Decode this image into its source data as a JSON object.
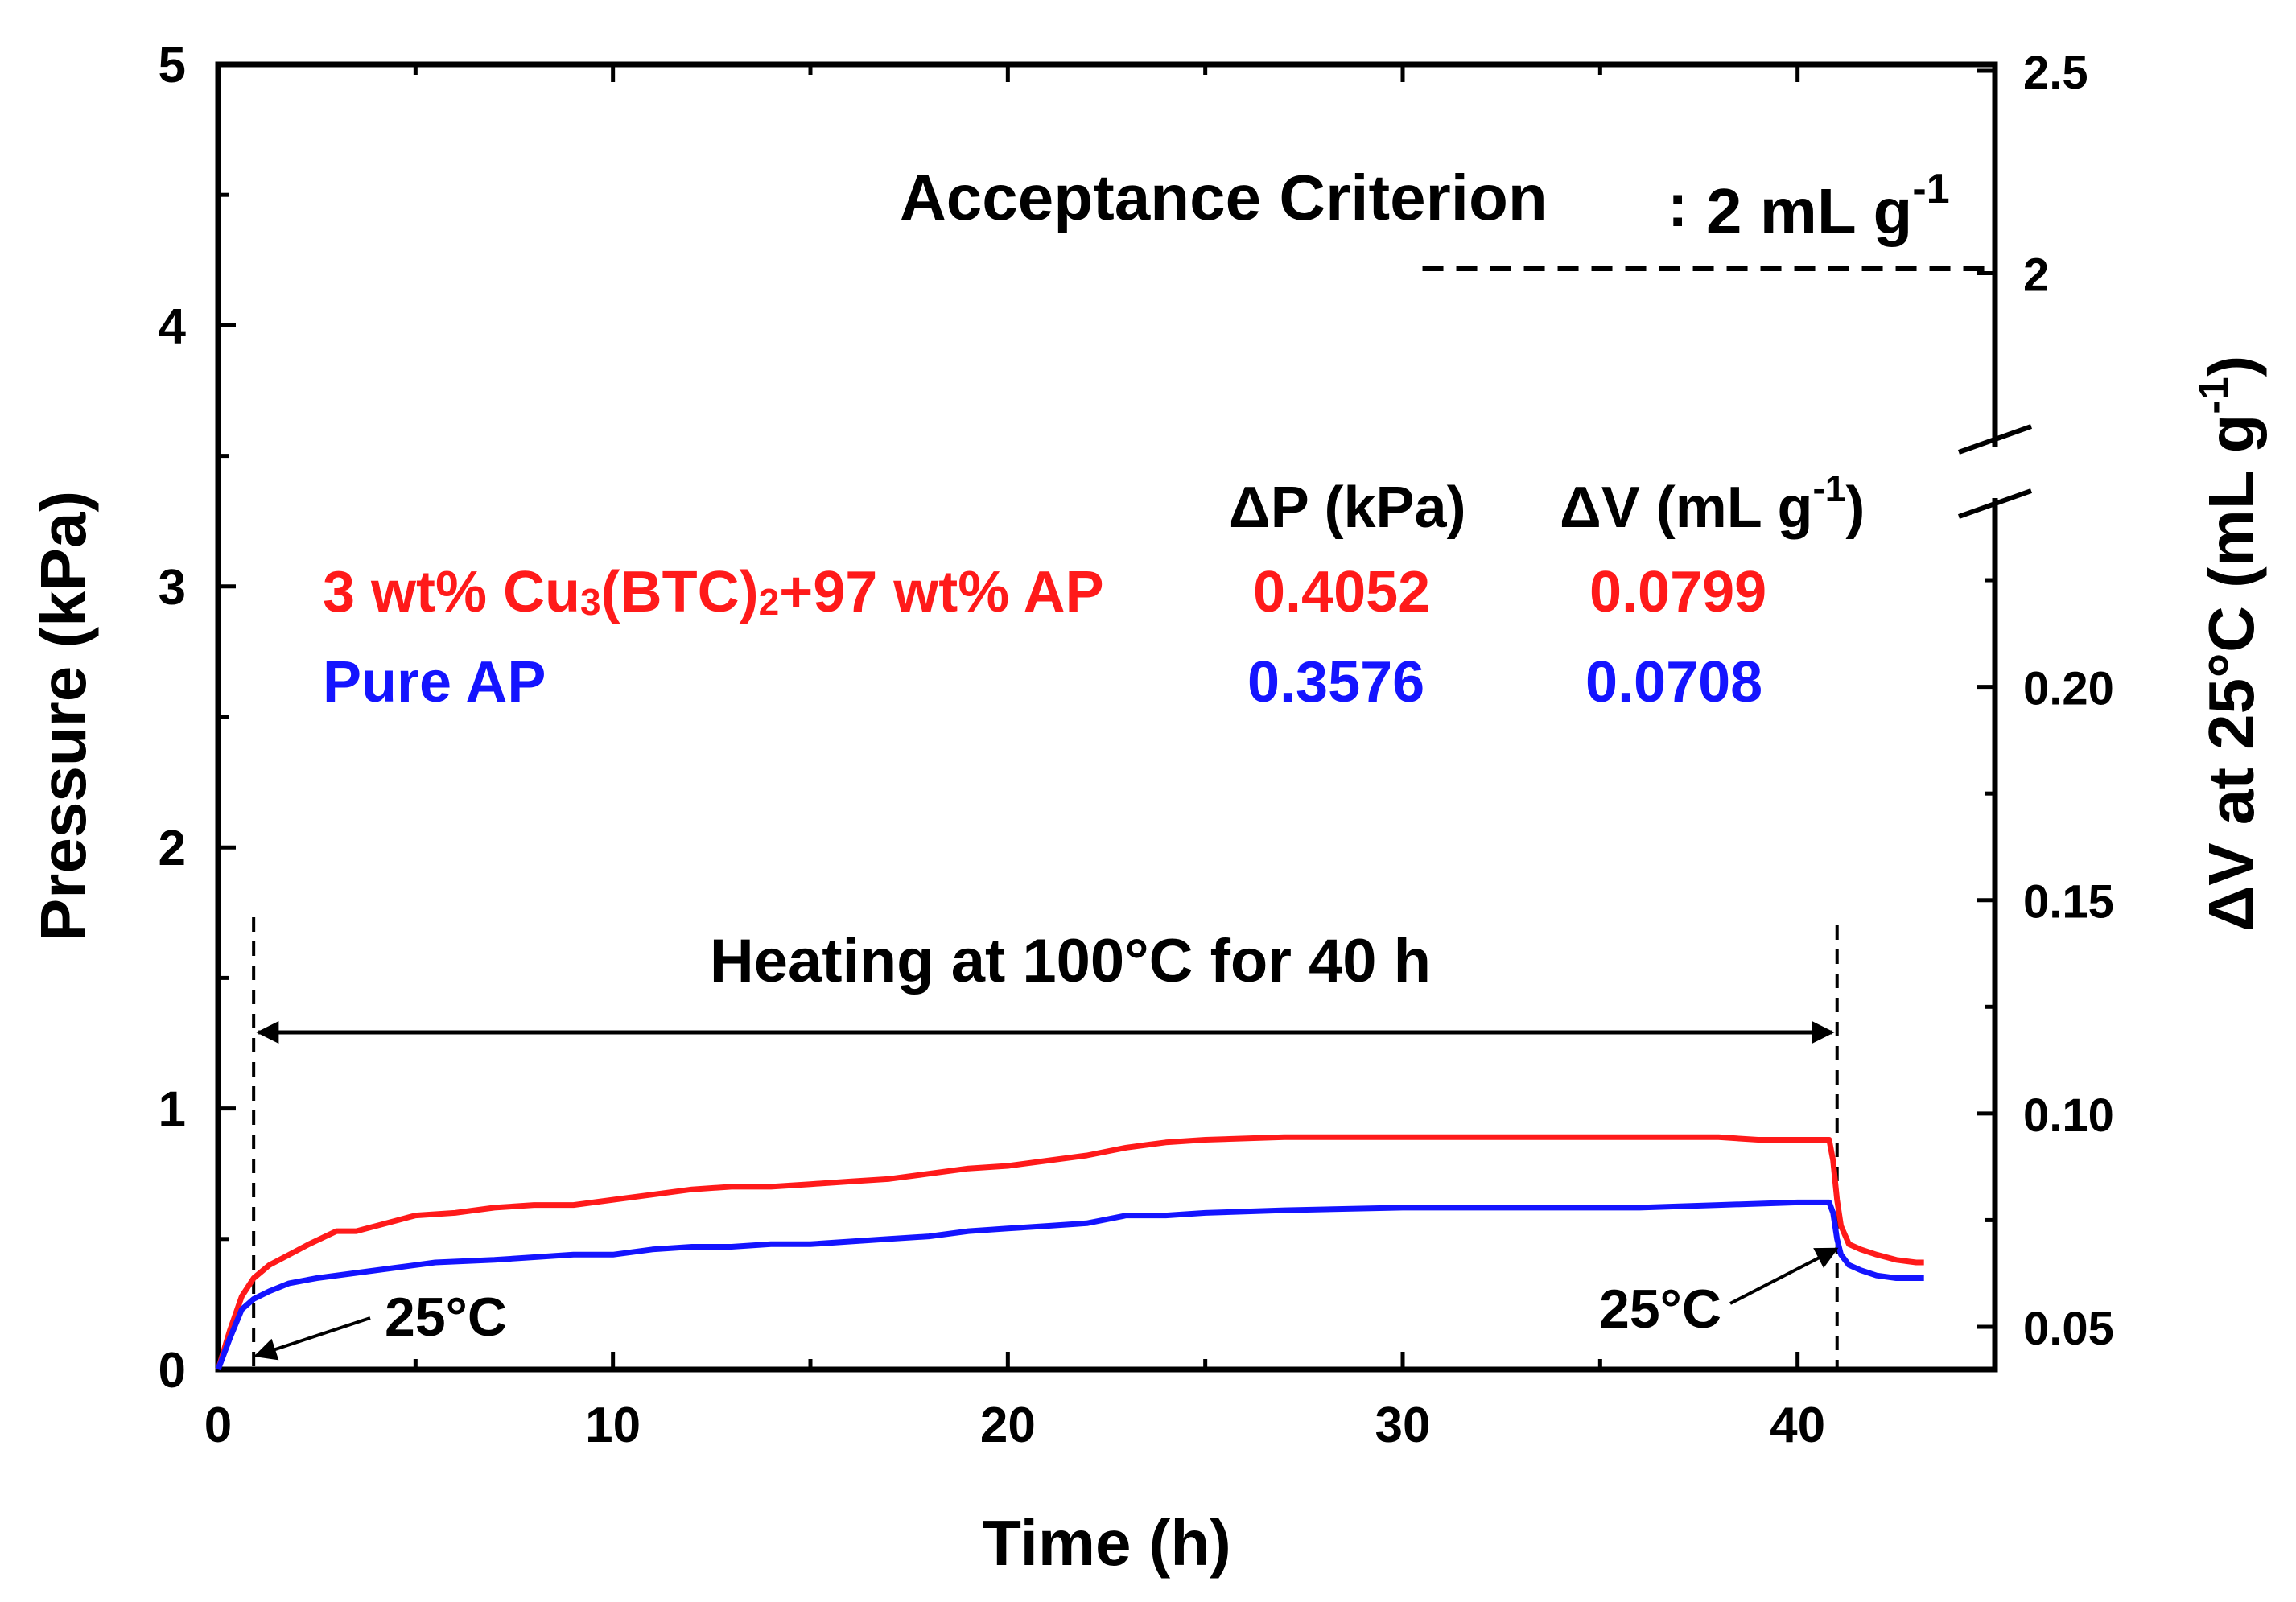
{
  "chart_data": {
    "type": "line",
    "xlabel": "Time (h)",
    "ylabel": "Pressure (kPa)",
    "y2label_main": "ΔV at 25°C (mL g",
    "y2label_sup": "-1",
    "y2label_close": ")",
    "xlim": [
      0,
      45
    ],
    "ylim": [
      0,
      5
    ],
    "y2_lower_range": [
      0.04,
      0.2516
    ],
    "y2_upper_range": [
      1.5,
      2.5
    ],
    "x_ticks": [
      0,
      10,
      20,
      30,
      40
    ],
    "x_tick_labels": [
      "0",
      "10",
      "20",
      "30",
      "40"
    ],
    "y_ticks": [
      0,
      1,
      2,
      3,
      4,
      5
    ],
    "y_tick_labels": [
      "0",
      "1",
      "2",
      "3",
      "4",
      "5"
    ],
    "y2_lower_ticks": [
      0.05,
      0.1,
      0.15,
      0.2
    ],
    "y2_lower_tick_labels": [
      "0.05",
      "0.10",
      "0.15",
      "0.20"
    ],
    "y2_upper_ticks": [
      2,
      2.5
    ],
    "y2_upper_tick_labels": [
      "2",
      "2.5"
    ],
    "grid": false,
    "series": [
      {
        "name": "3 wt% Cu3(BTC)2+97 wt% AP",
        "color": "#ff1a1a",
        "x": [
          0,
          0.3,
          0.6,
          0.9,
          1.3,
          1.8,
          2.3,
          3.0,
          3.5,
          4.0,
          4.5,
          5.0,
          6.0,
          7.0,
          8.0,
          9.0,
          10.0,
          11.0,
          12.0,
          13.0,
          14.0,
          15.0,
          16.0,
          17.0,
          18.0,
          19.0,
          20.0,
          21.0,
          22.0,
          23.0,
          23.5,
          24.0,
          25.0,
          27.0,
          30.0,
          33.0,
          36.0,
          38.0,
          39.0,
          40.0,
          40.8,
          40.9,
          41.0,
          41.1,
          41.3,
          41.6,
          42.0,
          42.5,
          43.0,
          43.2
        ],
        "y": [
          0,
          0.15,
          0.28,
          0.35,
          0.4,
          0.44,
          0.48,
          0.53,
          0.53,
          0.55,
          0.57,
          0.59,
          0.6,
          0.62,
          0.63,
          0.63,
          0.65,
          0.67,
          0.69,
          0.7,
          0.7,
          0.71,
          0.72,
          0.73,
          0.75,
          0.77,
          0.78,
          0.8,
          0.82,
          0.85,
          0.86,
          0.87,
          0.88,
          0.89,
          0.89,
          0.89,
          0.89,
          0.89,
          0.88,
          0.88,
          0.88,
          0.8,
          0.65,
          0.55,
          0.48,
          0.46,
          0.44,
          0.42,
          0.41,
          0.41
        ]
      },
      {
        "name": "Pure AP",
        "color": "#1414ff",
        "x": [
          0,
          0.3,
          0.6,
          0.9,
          1.3,
          1.8,
          2.5,
          3.5,
          4.5,
          5.5,
          7.0,
          8.0,
          9.0,
          10.0,
          11.0,
          12.0,
          13.0,
          14.0,
          15.0,
          16.0,
          17.0,
          18.0,
          19.0,
          20.0,
          21.0,
          22.0,
          23.0,
          24.0,
          25.0,
          27.0,
          30.0,
          33.0,
          36.0,
          38.0,
          40.0,
          40.8,
          40.9,
          41.0,
          41.1,
          41.3,
          41.6,
          42.0,
          42.5,
          43.0,
          43.2
        ],
        "y": [
          0,
          0.12,
          0.23,
          0.27,
          0.3,
          0.33,
          0.35,
          0.37,
          0.39,
          0.41,
          0.42,
          0.43,
          0.44,
          0.44,
          0.46,
          0.47,
          0.47,
          0.48,
          0.48,
          0.49,
          0.5,
          0.51,
          0.53,
          0.54,
          0.55,
          0.56,
          0.59,
          0.59,
          0.6,
          0.61,
          0.62,
          0.62,
          0.62,
          0.63,
          0.64,
          0.64,
          0.6,
          0.5,
          0.44,
          0.4,
          0.38,
          0.36,
          0.35,
          0.35,
          0.35
        ]
      }
    ],
    "annotations": {
      "criterion_label": "Acceptance Criterion",
      "criterion_colon": ":",
      "criterion_value": "2 mL g",
      "criterion_sup": "-1",
      "criterion_level": 2,
      "criterion_line_from_x": 30.5,
      "heating_label": "Heating at 100°C for 40 h",
      "heating_start_x": 0.9,
      "heating_end_x": 41.0,
      "start_temp_label": "25°C",
      "end_temp_label": "25°C",
      "table_header_dp": "ΔP (kPa)",
      "table_header_dv_main": "ΔV (mL g",
      "table_header_dv_sup": "-1",
      "table_header_dv_close": ")",
      "rows": [
        {
          "sample_prefix": "3 wt% Cu",
          "sample_sub1": "3",
          "sample_mid": "(BTC)",
          "sample_sub2": "2",
          "sample_suffix": "+97 wt% AP",
          "dp": "0.4052",
          "dv": "0.0799",
          "color": "#ff1a1a"
        },
        {
          "sample_prefix": "Pure AP",
          "sample_sub1": "",
          "sample_mid": "",
          "sample_sub2": "",
          "sample_suffix": "",
          "dp": "0.3576",
          "dv": "0.0708",
          "color": "#1414ff"
        }
      ]
    }
  }
}
